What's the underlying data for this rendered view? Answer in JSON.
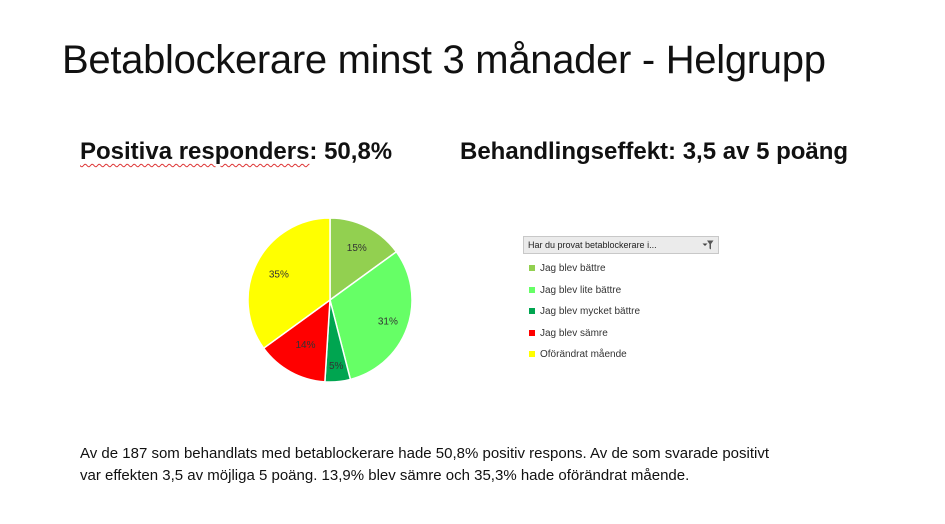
{
  "slide": {
    "title": "Betablockerare minst 3 månader - Helgrupp",
    "stat_left_underlined": "Positiva responders",
    "stat_left_rest": ": 50,8%",
    "stat_right": "Behandlingseffekt: 3,5 av 5 poäng",
    "caption_line1": "Av de 187 som behandlats med betablockerare hade 50,8% positiv respons. Av de som svarade positivt",
    "caption_line2": "var effekten 3,5 av möjliga 5 poäng. 13,9% blev sämre och 35,3% hade oförändrat mående."
  },
  "filter": {
    "header": "Har du provat betablockerare i...",
    "icon": "filter-dropdown-icon"
  },
  "chart_data": {
    "type": "pie",
    "title": "",
    "slices": [
      {
        "label": "Jag blev bättre",
        "value": 15,
        "value_label": "15%",
        "color": "#92d050"
      },
      {
        "label": "Jag blev lite bättre",
        "value": 31,
        "value_label": "31%",
        "color": "#66ff66"
      },
      {
        "label": "Jag blev mycket bättre",
        "value": 5,
        "value_label": "5%",
        "color": "#00a550"
      },
      {
        "label": "Jag blev sämre",
        "value": 14,
        "value_label": "14%",
        "color": "#ff0000"
      },
      {
        "label": "Oförändrat mående",
        "value": 35,
        "value_label": "35%",
        "color": "#ffff00"
      }
    ],
    "start_angle_deg": 0,
    "direction": "clockwise",
    "legend_position": "right"
  }
}
